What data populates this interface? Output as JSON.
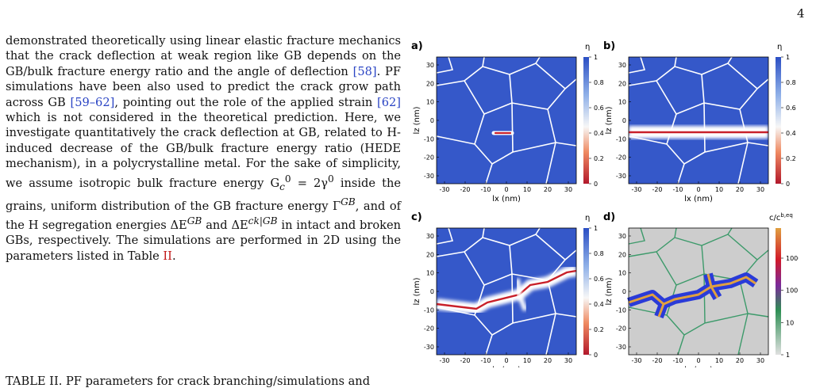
{
  "page_number": "4",
  "body": {
    "t1": "demonstrated theoretically using linear elastic fracture mechanics that the crack deflection at weak region like GB depends on the GB/bulk fracture energy ratio and the angle of deflection ",
    "c1": "[58]",
    "t2": ". PF simulations have been also used to predict the crack grow path across GB ",
    "c2": "[59–62]",
    "t3": ", pointing out the role of the applied strain ",
    "c3": "[62]",
    "t4": " which is not considered in the theoretical prediction. Here, we investigate quantitatively the crack deflection at GB, related to H-induced decrease of the GB/bulk fracture energy ratio (HEDE mechanism), in a polycrystalline metal. For the sake of simplicity, we assume isotropic bulk fracture energy G",
    "t5": " = 2γ",
    "t6": " inside the grains, uniform distribution of the GB fracture energy Γ",
    "t7": ", and of the H segregation energies ΔE",
    "t8": " and ΔE",
    "t9": " in intact and broken GBs, respectively. The simulations are performed in 2D using the parameters listed in Table ",
    "ref": "II",
    "t10": "."
  },
  "math": {
    "sub_c": "c",
    "sup_0": "0",
    "sup_GB": "GB",
    "sup_ckGB": "ck|GB"
  },
  "table_caption": "TABLE II.  PF parameters for crack branching/simulations and",
  "figure": {
    "panels": [
      {
        "label": "a)",
        "cbar_title": "η"
      },
      {
        "label": "b)",
        "cbar_title": "η"
      },
      {
        "label": "c)",
        "cbar_title": "η"
      },
      {
        "label": "d)",
        "cbar_title": "c/c"
      }
    ],
    "cbar_sup": "b,eq",
    "eta_ticks": [
      "1",
      "0.8",
      "0.6",
      "0.4",
      "0.2",
      "0"
    ],
    "conc_ticks": [
      "1000",
      "100",
      "10",
      "1"
    ],
    "x_ticks": [
      "-30",
      "-20",
      "-10",
      "0",
      "10",
      "20",
      "30"
    ],
    "y_ticks": [
      "30",
      "20",
      "10",
      "0",
      "-10",
      "-20",
      "-30"
    ],
    "xlabel": "lx (nm)",
    "ylabel": "lz (nm)"
  },
  "colors": {
    "grain": "#3558c9",
    "gb_white": "#ffffff",
    "crack_red": "#c8202a",
    "gb_green": "#3c9a6a",
    "grain_gray": "#cdcdcd",
    "cite_blue": "#2a44c4"
  }
}
